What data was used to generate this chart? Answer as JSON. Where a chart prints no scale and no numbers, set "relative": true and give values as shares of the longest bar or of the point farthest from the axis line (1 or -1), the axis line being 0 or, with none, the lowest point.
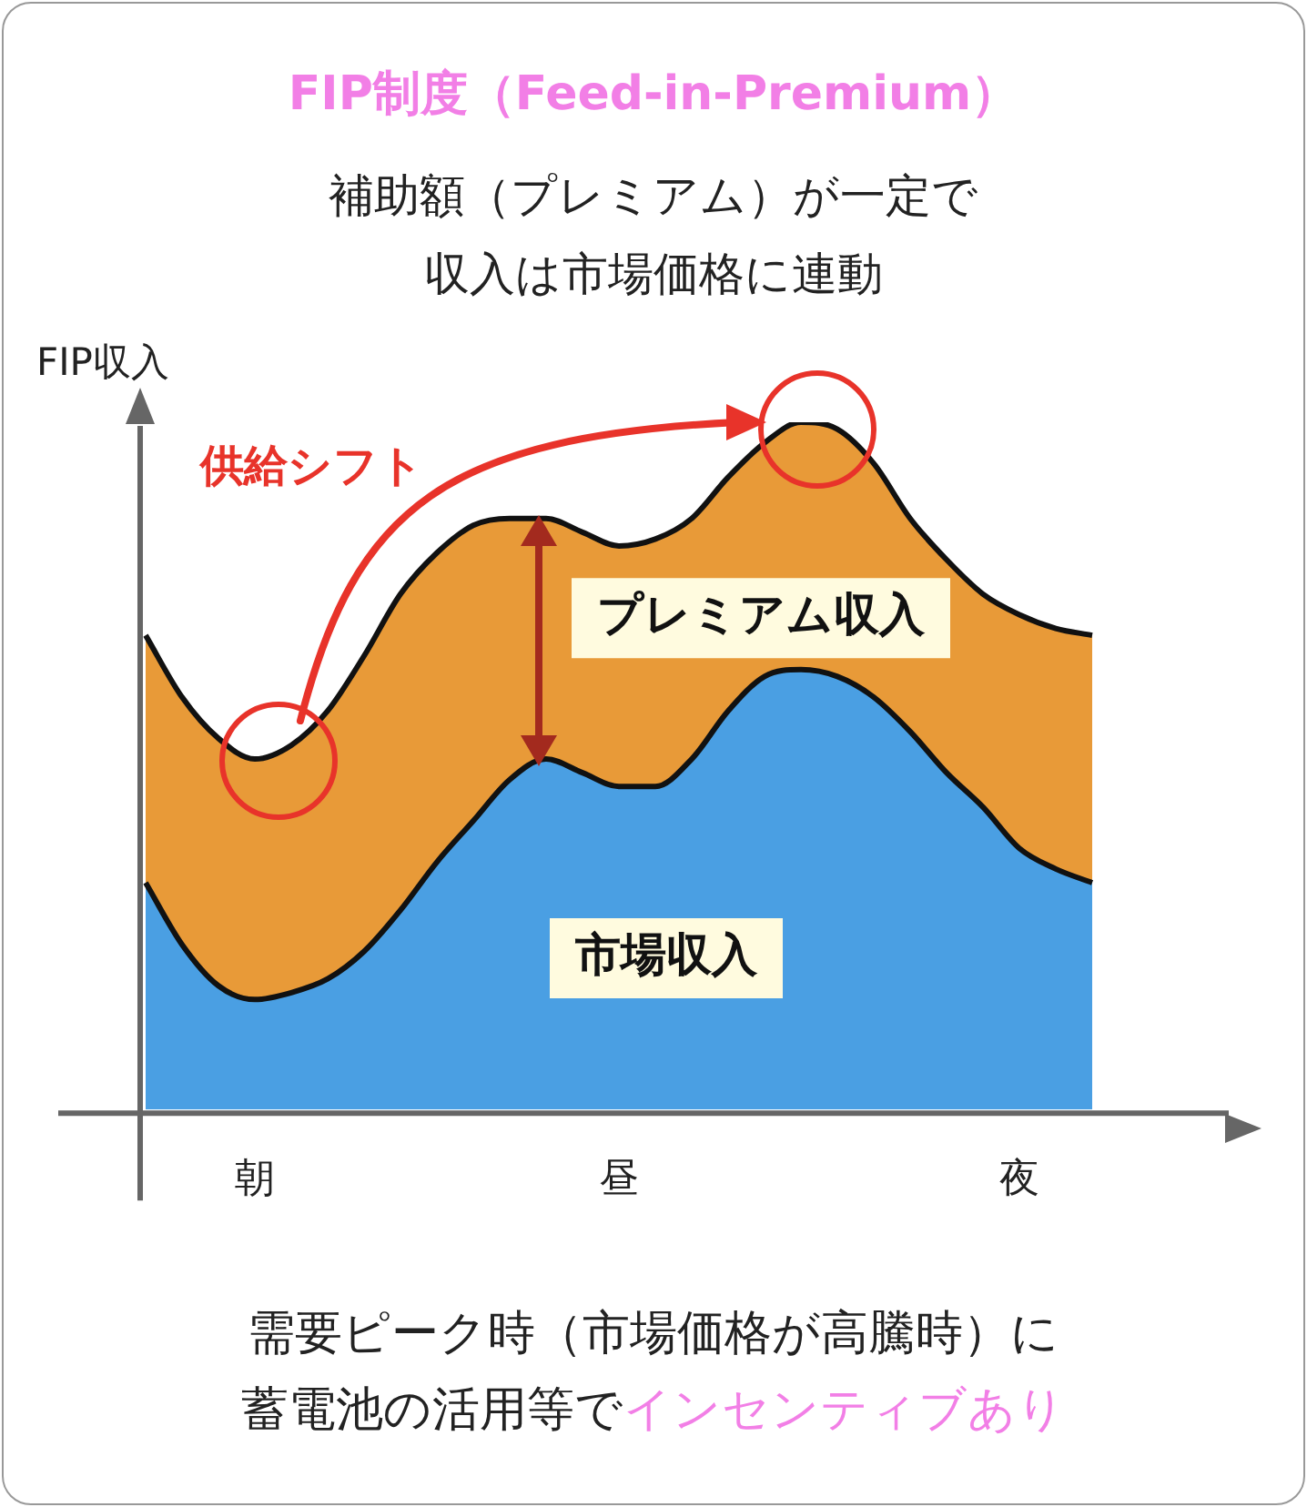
{
  "chart_data": {
    "type": "area",
    "title": "FIP制度（Feed-in-Premium）",
    "subtitle": "補助額（プレミアム）が一定で収入は市場価格に連動",
    "ylabel": "FIP収入",
    "relative": true,
    "stacked": true,
    "legend": false,
    "categories": [
      null,
      null,
      null,
      "朝",
      null,
      null,
      null,
      null,
      null,
      null,
      null,
      null,
      null,
      "昼",
      null,
      null,
      null,
      null,
      null,
      null,
      null,
      null,
      null,
      null,
      "夜",
      null,
      null
    ],
    "series": [
      {
        "name": "市場収入",
        "color": "#4a9fe3",
        "values": [
          0.33,
          0.24,
          0.18,
          0.16,
          0.17,
          0.19,
          0.23,
          0.29,
          0.36,
          0.42,
          0.48,
          0.51,
          0.49,
          0.47,
          0.47,
          0.51,
          0.58,
          0.63,
          0.64,
          0.63,
          0.6,
          0.55,
          0.49,
          0.44,
          0.38,
          0.35,
          0.33
        ]
      },
      {
        "name": "プレミアム収入",
        "color": "#e89a38",
        "values": [
          0.36,
          0.36,
          0.36,
          0.35,
          0.36,
          0.39,
          0.43,
          0.46,
          0.45,
          0.43,
          0.38,
          0.35,
          0.35,
          0.35,
          0.36,
          0.35,
          0.34,
          0.34,
          0.36,
          0.36,
          0.34,
          0.31,
          0.31,
          0.31,
          0.34,
          0.35,
          0.36
        ]
      }
    ],
    "annotations": [
      "供給シフト",
      "需要ピーク時（市場価格が高騰時）に",
      "蓄電池の活用等で",
      "インセンティブあり"
    ]
  }
}
